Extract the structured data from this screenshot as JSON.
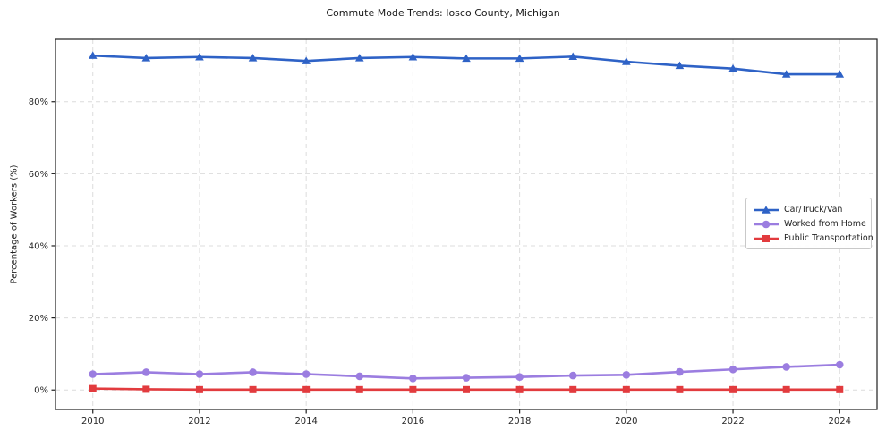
{
  "chart_data": {
    "type": "line",
    "title": "Commute Mode Trends: Iosco County, Michigan",
    "xlabel": "",
    "ylabel": "Percentage of Workers (%)",
    "x": [
      2010,
      2011,
      2012,
      2013,
      2014,
      2015,
      2016,
      2017,
      2018,
      2019,
      2020,
      2021,
      2022,
      2023,
      2024
    ],
    "x_tick_years": [
      2010,
      2012,
      2014,
      2016,
      2018,
      2020,
      2022,
      2024
    ],
    "y_ticks": [
      0,
      20,
      40,
      60,
      80
    ],
    "y_tick_suffix": "%",
    "xlim": [
      2009.3,
      2024.7
    ],
    "ylim": [
      -5.4,
      97.3
    ],
    "grid": true,
    "grid_style": "dashed",
    "legend_position": "center-right",
    "series": [
      {
        "name": "Car/Truck/Van",
        "color": "#2e62c6",
        "marker": "triangle",
        "values": [
          92.8,
          92.1,
          92.4,
          92.1,
          91.3,
          92.1,
          92.4,
          92.0,
          92.0,
          92.5,
          91.1,
          90.0,
          89.2,
          87.6,
          87.6
        ]
      },
      {
        "name": "Worked from Home",
        "color": "#9b7de0",
        "marker": "circle",
        "values": [
          4.4,
          4.9,
          4.4,
          4.9,
          4.4,
          3.8,
          3.2,
          3.4,
          3.6,
          4.0,
          4.2,
          5.0,
          5.7,
          6.4,
          7.0
        ]
      },
      {
        "name": "Public Transportation",
        "color": "#e23b3e",
        "marker": "square",
        "values": [
          0.4,
          0.2,
          0.1,
          0.1,
          0.1,
          0.1,
          0.1,
          0.1,
          0.1,
          0.1,
          0.1,
          0.1,
          0.1,
          0.1,
          0.1
        ]
      }
    ],
    "colors": {
      "grid": "#dcdcdc",
      "spine": "#1f1f1f",
      "tick_label": "#262626",
      "legend_border": "#c9c9c9"
    }
  }
}
